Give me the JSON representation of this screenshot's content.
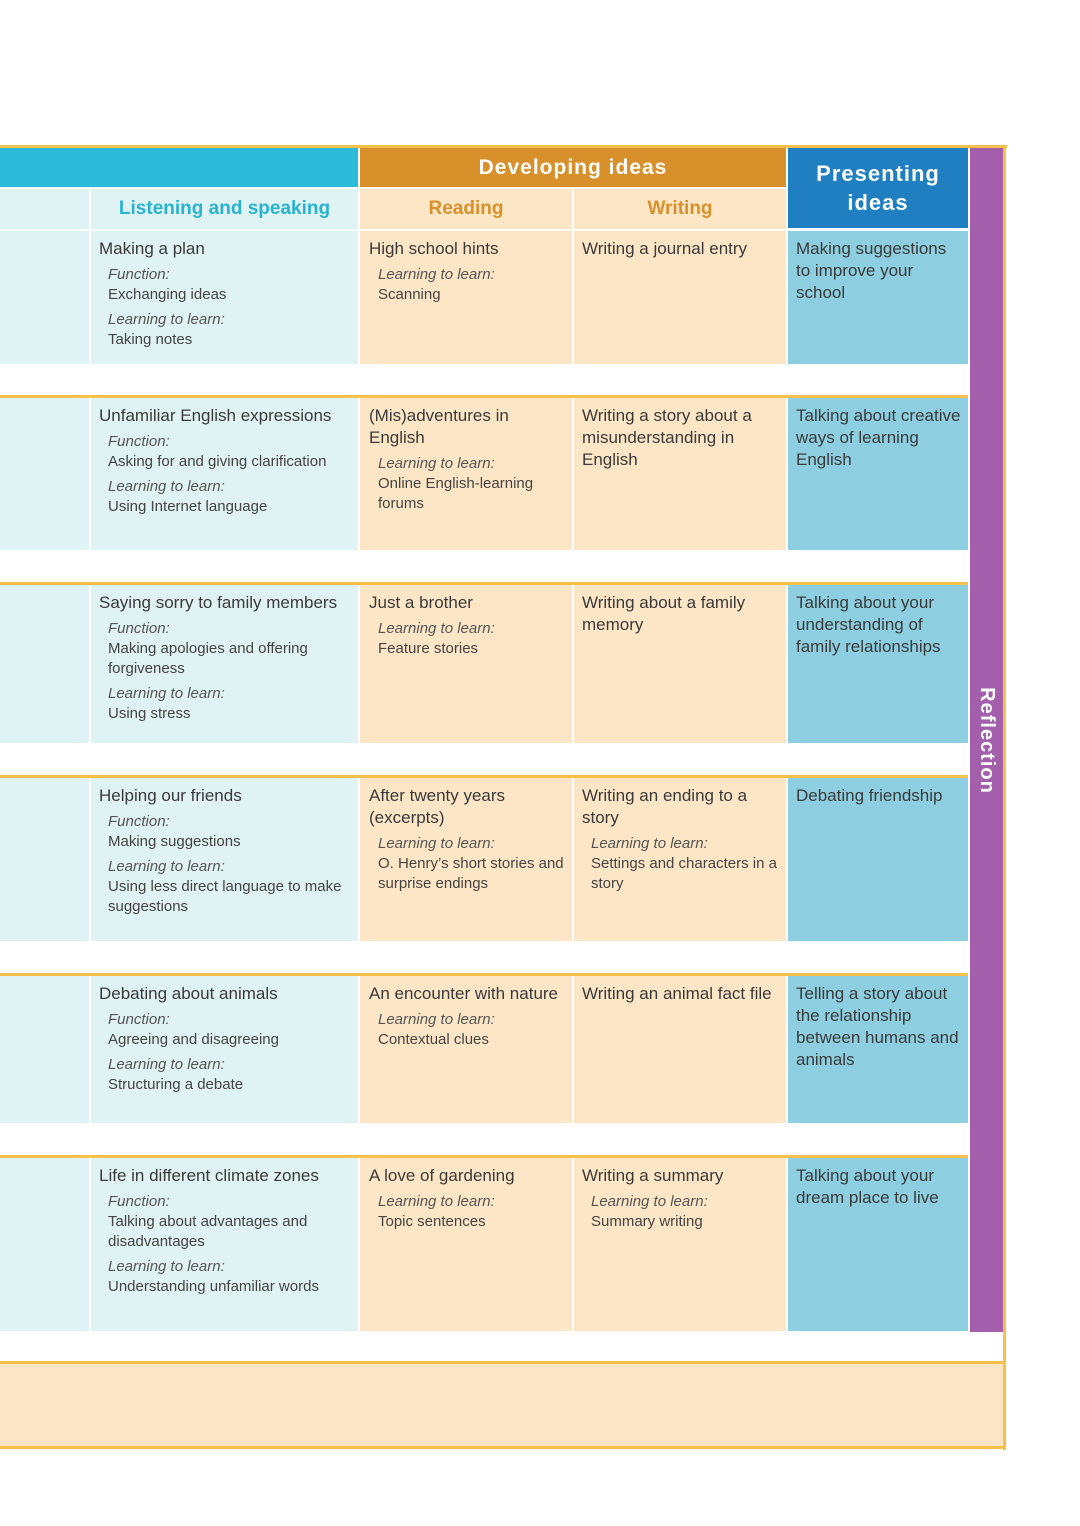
{
  "header": {
    "developing_ideas": "Developing ideas",
    "presenting_ideas": "Presenting ideas",
    "listening_speaking": "Listening and speaking",
    "reading": "Reading",
    "writing": "Writing",
    "reflection": "Reflection"
  },
  "labels": {
    "function": "Function:",
    "learning_to_learn": "Learning to learn:"
  },
  "rows": [
    {
      "listening": {
        "title": "Making a plan",
        "function": "Exchanging ideas",
        "learning": "Taking notes"
      },
      "reading": {
        "title": "High school hints",
        "learning": "Scanning"
      },
      "writing": {
        "title": "Writing a journal entry",
        "learning": ""
      },
      "presenting": "Making suggestions to improve your school"
    },
    {
      "listening": {
        "title": "Unfamiliar English expressions",
        "function": "Asking for and giving clarification",
        "learning": "Using Internet language"
      },
      "reading": {
        "title": "(Mis)adventures in English",
        "learning": "Online English-learning forums"
      },
      "writing": {
        "title": "Writing a story about a misunderstanding in English",
        "learning": ""
      },
      "presenting": "Talking about creative ways of learning English"
    },
    {
      "listening": {
        "title": "Saying sorry to family members",
        "function": "Making apologies and offering forgiveness",
        "learning": "Using stress"
      },
      "reading": {
        "title": "Just a brother",
        "learning": "Feature stories"
      },
      "writing": {
        "title": "Writing about a family memory",
        "learning": ""
      },
      "presenting": "Talking about your understanding of family relationships"
    },
    {
      "listening": {
        "title": "Helping our friends",
        "function": "Making suggestions",
        "learning": "Using less direct language to make suggestions"
      },
      "reading": {
        "title": "After twenty years (excerpts)",
        "learning": "O. Henry’s short stories and surprise endings"
      },
      "writing": {
        "title": "Writing an ending to a story",
        "learning": "Settings and characters in a story"
      },
      "presenting": "Debating friendship"
    },
    {
      "listening": {
        "title": "Debating about animals",
        "function": "Agreeing and disagreeing",
        "learning": "Structuring a debate"
      },
      "reading": {
        "title": "An encounter with nature",
        "learning": "Contextual clues"
      },
      "writing": {
        "title": "Writing an animal fact file",
        "learning": ""
      },
      "presenting": "Telling a story about the relationship between humans and animals"
    },
    {
      "listening": {
        "title": "Life in different climate zones",
        "function": "Talking about advantages and disadvantages",
        "learning": "Understanding unfamiliar words"
      },
      "reading": {
        "title": "A love of gardening",
        "learning": "Topic sentences"
      },
      "writing": {
        "title": "Writing a summary",
        "learning": "Summary writing"
      },
      "presenting": "Talking about your dream place to live"
    }
  ]
}
